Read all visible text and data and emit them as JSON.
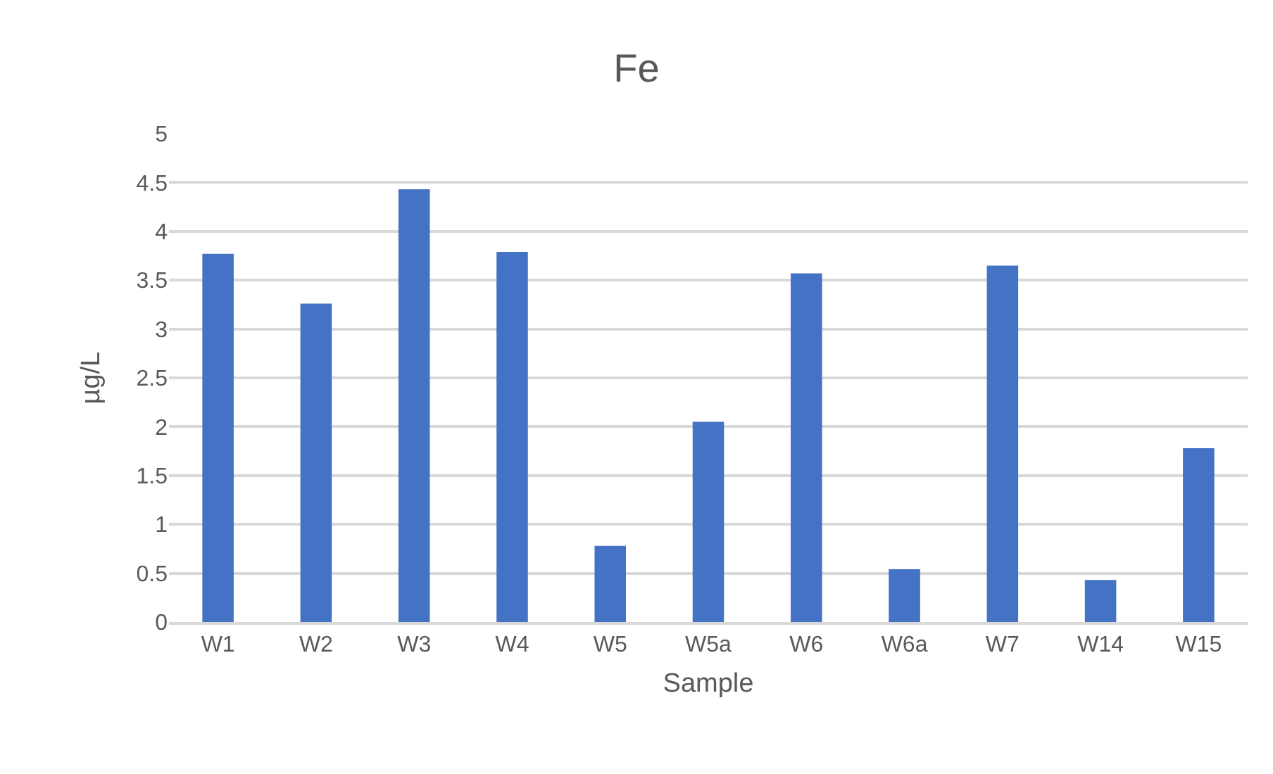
{
  "chart_data": {
    "type": "bar",
    "title": "Fe",
    "xlabel": "Sample",
    "ylabel": "µg/L",
    "categories": [
      "W1",
      "W2",
      "W3",
      "W4",
      "W5",
      "W5a",
      "W6",
      "W6a",
      "W7",
      "W14",
      "W15"
    ],
    "values": [
      3.77,
      3.26,
      4.43,
      3.79,
      0.78,
      2.05,
      3.57,
      0.54,
      3.65,
      0.43,
      1.78
    ],
    "color": "#4472c4",
    "ylim": [
      0,
      5
    ],
    "yticks": [
      0,
      0.5,
      1,
      1.5,
      2,
      2.5,
      3,
      3.5,
      4,
      4.5,
      5
    ],
    "grid": "y"
  }
}
